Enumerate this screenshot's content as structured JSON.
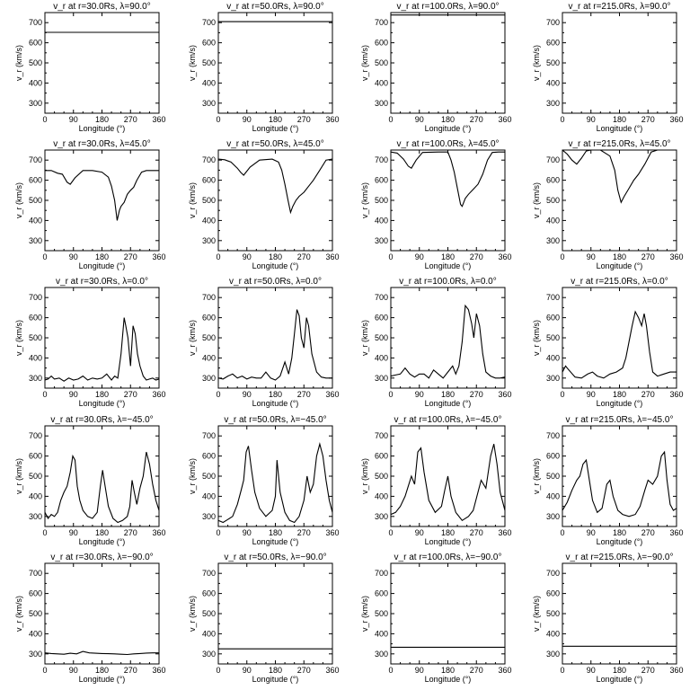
{
  "chart_data": {
    "type": "line",
    "xlabel": "Longitude (°)",
    "ylabel": "v_r (km/s)",
    "xlim": [
      0,
      360
    ],
    "ylim": [
      250,
      750
    ],
    "xticks": [
      "0",
      "90",
      "180",
      "270",
      "360"
    ],
    "yticks": [
      "300",
      "400",
      "500",
      "600",
      "700"
    ],
    "grid": false,
    "panels": [
      {
        "title": "v_r at r=30.0Rs, λ=90.0°",
        "x": [
          0,
          360
        ],
        "y": [
          652,
          652
        ]
      },
      {
        "title": "v_r at r=50.0Rs, λ=90.0°",
        "x": [
          0,
          360
        ],
        "y": [
          705,
          705
        ]
      },
      {
        "title": "v_r at r=100.0Rs, λ=90.0°",
        "x": [
          0,
          360
        ],
        "y": [
          738,
          738
        ]
      },
      {
        "title": "v_r at r=215.0Rs, λ=90.0°",
        "x": [
          0,
          360
        ],
        "y": [
          752,
          752
        ]
      },
      {
        "title": "v_r at r=30.0Rs, λ=45.0°",
        "x": [
          0,
          20,
          40,
          55,
          70,
          80,
          95,
          120,
          150,
          180,
          200,
          210,
          220,
          228,
          235,
          240,
          250,
          260,
          270,
          280,
          290,
          305,
          320,
          340,
          360
        ],
        "y": [
          648,
          648,
          635,
          630,
          590,
          580,
          612,
          648,
          648,
          640,
          615,
          570,
          500,
          400,
          450,
          470,
          490,
          530,
          550,
          565,
          600,
          640,
          648,
          648,
          648
        ]
      },
      {
        "title": "v_r at r=50.0Rs, λ=45.0°",
        "x": [
          0,
          20,
          40,
          60,
          70,
          80,
          100,
          130,
          170,
          190,
          200,
          210,
          220,
          228,
          235,
          245,
          255,
          270,
          285,
          300,
          320,
          340,
          360
        ],
        "y": [
          705,
          702,
          690,
          660,
          640,
          625,
          665,
          700,
          705,
          690,
          650,
          580,
          500,
          440,
          470,
          500,
          520,
          540,
          570,
          600,
          650,
          700,
          705
        ]
      },
      {
        "title": "v_r at r=100.0Rs, λ=45.0°",
        "x": [
          0,
          20,
          40,
          55,
          65,
          80,
          100,
          150,
          180,
          190,
          200,
          210,
          220,
          225,
          235,
          245,
          260,
          275,
          290,
          305,
          320,
          340,
          360
        ],
        "y": [
          740,
          735,
          705,
          670,
          660,
          700,
          738,
          740,
          740,
          700,
          640,
          560,
          480,
          470,
          510,
          530,
          555,
          580,
          630,
          700,
          738,
          740,
          740
        ]
      },
      {
        "title": "v_r at r=215.0Rs, λ=45.0°",
        "x": [
          0,
          15,
          30,
          45,
          60,
          75,
          90,
          120,
          150,
          165,
          175,
          185,
          195,
          210,
          225,
          240,
          260,
          280,
          300,
          320,
          340,
          360
        ],
        "y": [
          750,
          730,
          700,
          680,
          710,
          745,
          750,
          750,
          720,
          650,
          550,
          490,
          520,
          560,
          600,
          630,
          680,
          740,
          750,
          750,
          750,
          750
        ]
      },
      {
        "title": "v_r at r=30.0Rs, λ=0.0°",
        "x": [
          0,
          10,
          20,
          30,
          45,
          60,
          75,
          90,
          105,
          120,
          135,
          150,
          165,
          180,
          195,
          210,
          220,
          230,
          240,
          250,
          255,
          262,
          270,
          278,
          285,
          292,
          300,
          310,
          320,
          330,
          340,
          350,
          360
        ],
        "y": [
          290,
          295,
          310,
          295,
          300,
          285,
          300,
          290,
          295,
          310,
          290,
          300,
          295,
          300,
          320,
          290,
          310,
          300,
          420,
          600,
          560,
          500,
          360,
          560,
          520,
          420,
          360,
          310,
          290,
          295,
          300,
          290,
          295
        ]
      },
      {
        "title": "v_r at r=50.0Rs, λ=0.0°",
        "x": [
          0,
          15,
          30,
          45,
          60,
          75,
          90,
          105,
          120,
          135,
          150,
          165,
          180,
          195,
          210,
          222,
          232,
          240,
          248,
          255,
          262,
          270,
          278,
          285,
          295,
          310,
          325,
          340,
          360
        ],
        "y": [
          300,
          295,
          310,
          320,
          300,
          310,
          295,
          305,
          300,
          300,
          330,
          300,
          290,
          310,
          380,
          320,
          400,
          520,
          640,
          610,
          500,
          450,
          600,
          560,
          420,
          330,
          305,
          300,
          300
        ]
      },
      {
        "title": "v_r at r=100.0Rs, λ=0.0°",
        "x": [
          0,
          15,
          30,
          45,
          60,
          75,
          90,
          105,
          120,
          135,
          150,
          165,
          180,
          195,
          205,
          215,
          225,
          235,
          245,
          255,
          262,
          270,
          280,
          290,
          300,
          315,
          330,
          345,
          360
        ],
        "y": [
          310,
          315,
          320,
          350,
          320,
          305,
          320,
          320,
          300,
          340,
          320,
          300,
          330,
          360,
          320,
          360,
          480,
          660,
          640,
          570,
          500,
          620,
          560,
          420,
          330,
          310,
          300,
          300,
          305
        ]
      },
      {
        "title": "v_r at r=215.0Rs, λ=0.0°",
        "x": [
          0,
          10,
          20,
          40,
          60,
          80,
          95,
          110,
          130,
          150,
          170,
          190,
          200,
          210,
          220,
          230,
          240,
          250,
          258,
          265,
          275,
          285,
          300,
          320,
          340,
          360
        ],
        "y": [
          330,
          360,
          340,
          305,
          300,
          320,
          330,
          310,
          300,
          320,
          330,
          350,
          400,
          480,
          560,
          630,
          600,
          560,
          620,
          560,
          430,
          330,
          310,
          320,
          330,
          330
        ]
      },
      {
        "title": "v_r at r=30.0Rs, λ=−45.0°",
        "x": [
          0,
          10,
          20,
          30,
          40,
          50,
          60,
          70,
          80,
          88,
          95,
          102,
          110,
          120,
          135,
          150,
          165,
          175,
          182,
          190,
          200,
          215,
          230,
          245,
          260,
          268,
          275,
          282,
          290,
          300,
          310,
          320,
          330,
          340,
          350,
          360
        ],
        "y": [
          320,
          290,
          310,
          300,
          320,
          380,
          420,
          450,
          520,
          600,
          580,
          450,
          380,
          330,
          300,
          290,
          320,
          450,
          530,
          450,
          350,
          290,
          270,
          280,
          300,
          350,
          480,
          420,
          360,
          440,
          500,
          620,
          560,
          460,
          380,
          330
        ]
      },
      {
        "title": "v_r at r=50.0Rs, λ=−45.0°",
        "x": [
          0,
          15,
          30,
          45,
          60,
          72,
          80,
          88,
          95,
          105,
          115,
          130,
          150,
          170,
          180,
          185,
          195,
          210,
          225,
          240,
          255,
          270,
          280,
          290,
          300,
          310,
          320,
          330,
          340,
          350,
          360
        ],
        "y": [
          280,
          270,
          285,
          300,
          360,
          430,
          480,
          620,
          650,
          530,
          420,
          340,
          300,
          330,
          400,
          580,
          420,
          320,
          280,
          270,
          300,
          380,
          500,
          420,
          460,
          600,
          660,
          600,
          480,
          380,
          320
        ]
      },
      {
        "title": "v_r at r=100.0Rs, λ=−45.0°",
        "x": [
          0,
          15,
          30,
          45,
          55,
          65,
          75,
          85,
          95,
          105,
          120,
          140,
          160,
          170,
          180,
          190,
          205,
          225,
          245,
          260,
          275,
          285,
          300,
          315,
          325,
          335,
          345,
          360
        ],
        "y": [
          310,
          320,
          350,
          400,
          450,
          500,
          460,
          620,
          640,
          520,
          380,
          320,
          350,
          430,
          500,
          400,
          320,
          280,
          300,
          330,
          420,
          480,
          440,
          600,
          660,
          560,
          420,
          330
        ]
      },
      {
        "title": "v_r at r=215.0Rs, λ=−45.0°",
        "x": [
          0,
          15,
          30,
          45,
          55,
          65,
          75,
          85,
          95,
          110,
          125,
          140,
          150,
          160,
          175,
          190,
          210,
          230,
          245,
          260,
          270,
          285,
          300,
          312,
          322,
          330,
          340,
          350,
          360
        ],
        "y": [
          330,
          370,
          430,
          480,
          500,
          560,
          580,
          480,
          380,
          320,
          340,
          460,
          480,
          400,
          330,
          310,
          300,
          310,
          350,
          430,
          480,
          460,
          500,
          600,
          620,
          480,
          360,
          330,
          340
        ]
      },
      {
        "title": "v_r at r=30.0Rs, λ=−90.0°",
        "x": [
          0,
          20,
          40,
          60,
          80,
          100,
          120,
          140,
          160,
          180,
          200,
          220,
          240,
          260,
          280,
          300,
          320,
          340,
          360
        ],
        "y": [
          305,
          302,
          300,
          298,
          303,
          300,
          312,
          305,
          303,
          302,
          301,
          300,
          298,
          297,
          300,
          302,
          304,
          305,
          305
        ]
      },
      {
        "title": "v_r at r=50.0Rs, λ=−90.0°",
        "x": [
          0,
          360
        ],
        "y": [
          325,
          325
        ]
      },
      {
        "title": "v_r at r=100.0Rs, λ=−90.0°",
        "x": [
          0,
          360
        ],
        "y": [
          333,
          333
        ]
      },
      {
        "title": "v_r at r=215.0Rs, λ=−90.0°",
        "x": [
          0,
          360
        ],
        "y": [
          338,
          338
        ]
      }
    ]
  }
}
